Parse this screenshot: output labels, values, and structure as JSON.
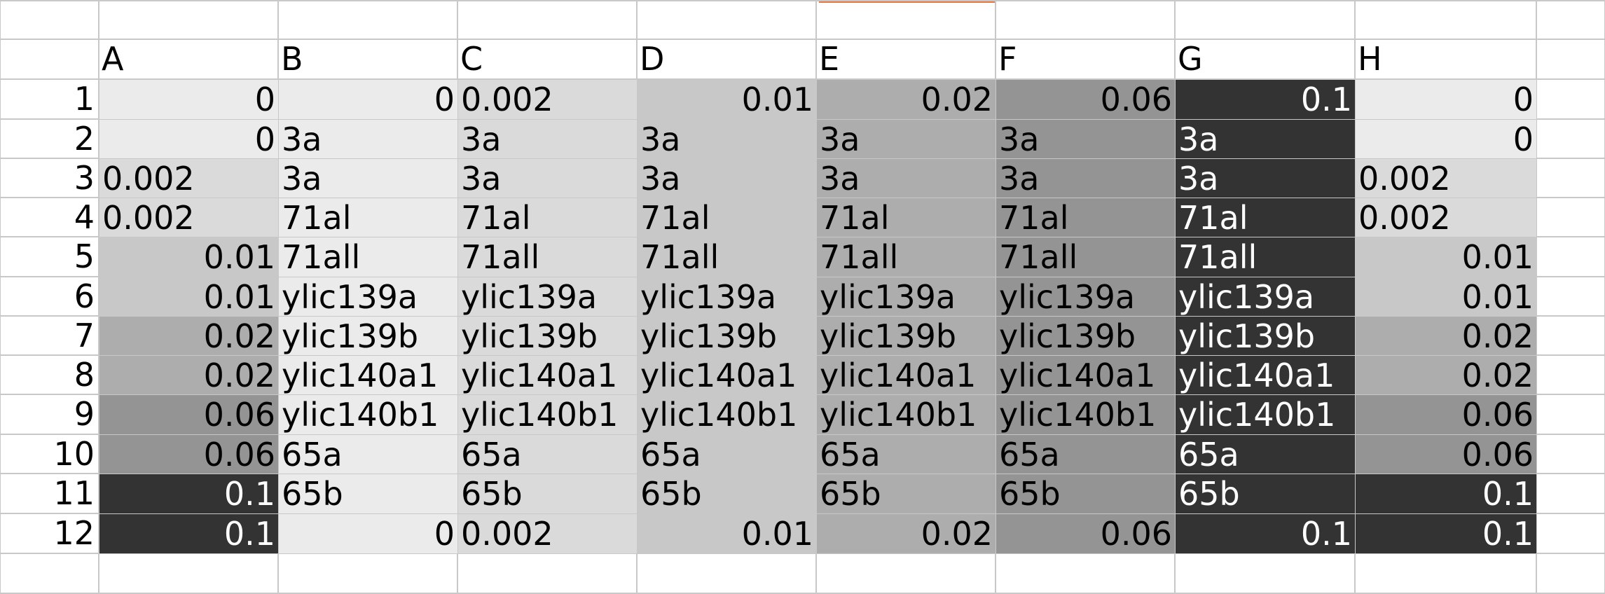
{
  "colors": {
    "grid_line": "#c8c8c8",
    "header_accent": "#e8763f",
    "shade_0": "#ebebeb",
    "shade_0_002": "#dadada",
    "shade_0_01": "#c8c8c8",
    "shade_0_02": "#adadad",
    "shade_0_06": "#949494",
    "shade_0_1": "#333333"
  },
  "sheet": {
    "column_headers": [
      "A",
      "B",
      "C",
      "D",
      "E",
      "F",
      "G",
      "H"
    ],
    "row_headers": [
      "1",
      "2",
      "3",
      "4",
      "5",
      "6",
      "7",
      "8",
      "9",
      "10",
      "11",
      "12"
    ],
    "rows": [
      [
        "0",
        "0",
        "0.002",
        "0.01",
        "0.02",
        "0.06",
        "0.1",
        "0"
      ],
      [
        "0",
        "3a",
        "3a",
        "3a",
        "3a",
        "3a",
        "3a",
        "0"
      ],
      [
        "0.002",
        "3a",
        "3a",
        "3a",
        "3a",
        "3a",
        "3a",
        "0.002"
      ],
      [
        "0.002",
        "71al",
        "71al",
        "71al",
        "71al",
        "71al",
        "71al",
        "0.002"
      ],
      [
        "0.01",
        "71all",
        "71all",
        "71all",
        "71all",
        "71all",
        "71all",
        "0.01"
      ],
      [
        "0.01",
        "ylic139a",
        "ylic139a",
        "ylic139a",
        "ylic139a",
        "ylic139a",
        "ylic139a",
        "0.01"
      ],
      [
        "0.02",
        "ylic139b",
        "ylic139b",
        "ylic139b",
        "ylic139b",
        "ylic139b",
        "ylic139b",
        "0.02"
      ],
      [
        "0.02",
        "ylic140a1",
        "ylic140a1",
        "ylic140a1",
        "ylic140a1",
        "ylic140a1",
        "ylic140a1",
        "0.02"
      ],
      [
        "0.06",
        "ylic140b1",
        "ylic140b1",
        "ylic140b1",
        "ylic140b1",
        "ylic140b1",
        "ylic140b1",
        "0.06"
      ],
      [
        "0.06",
        "65a",
        "65a",
        "65a",
        "65a",
        "65a",
        "65a",
        "0.06"
      ],
      [
        "0.1",
        "65b",
        "65b",
        "65b",
        "65b",
        "65b",
        "65b",
        "0.1"
      ],
      [
        "0.1",
        "0",
        "0.002",
        "0.01",
        "0.02",
        "0.06",
        "0.1",
        "0.1"
      ]
    ]
  }
}
